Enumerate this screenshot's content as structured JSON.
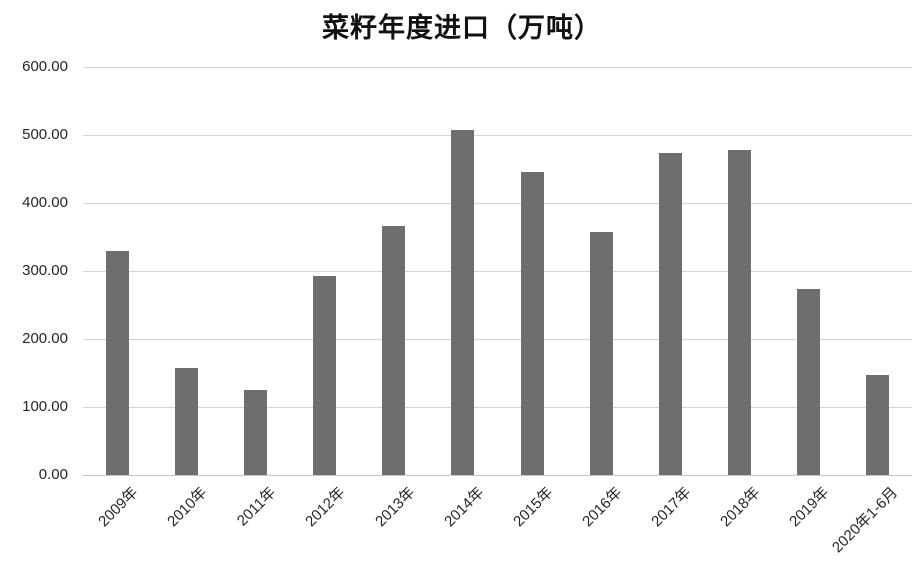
{
  "chart_data": {
    "type": "bar",
    "title": "菜籽年度进口（万吨）",
    "categories": [
      "2009年",
      "2010年",
      "2011年",
      "2012年",
      "2013年",
      "2014年",
      "2015年",
      "2016年",
      "2017年",
      "2018年",
      "2019年",
      "2020年1-6月"
    ],
    "values": [
      329,
      158,
      125,
      293,
      366,
      508,
      446,
      357,
      474,
      478,
      274,
      147
    ],
    "xlabel": "",
    "ylabel": "",
    "ylim": [
      0,
      600
    ],
    "ytick_step": 100,
    "yticks": [
      {
        "value": 0,
        "label": "0.00"
      },
      {
        "value": 100,
        "label": "100.00"
      },
      {
        "value": 200,
        "label": "200.00"
      },
      {
        "value": 300,
        "label": "300.00"
      },
      {
        "value": 400,
        "label": "400.00"
      },
      {
        "value": 500,
        "label": "500.00"
      },
      {
        "value": 600,
        "label": "600.00"
      }
    ],
    "grid": true,
    "legend_position": "none",
    "bar_color": "#6e6e6e",
    "grid_color": "#d4d4d4",
    "text_color": "#262626",
    "background_color": "#ffffff"
  }
}
